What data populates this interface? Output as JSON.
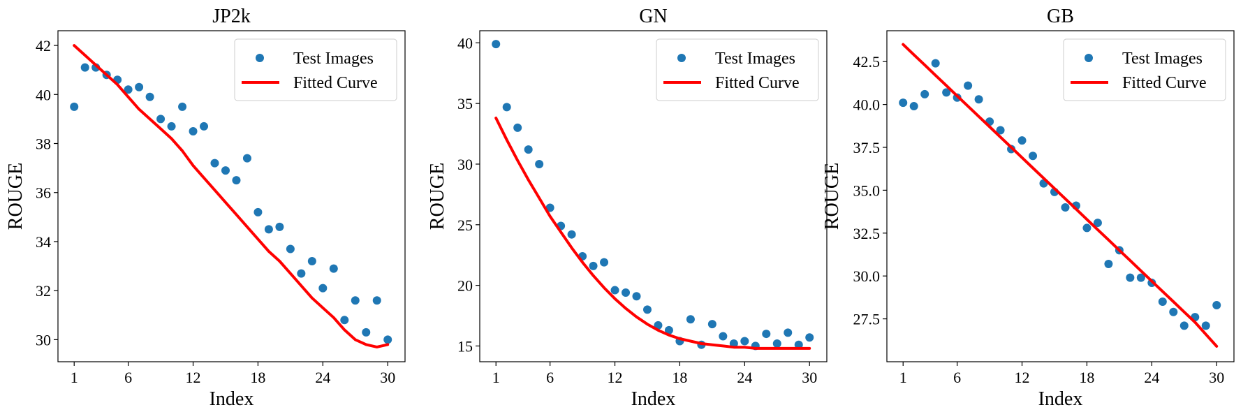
{
  "chart_data": [
    {
      "type": "scatter",
      "title": "JP2k",
      "xlabel": "Index",
      "ylabel": "ROUGE",
      "xlim": [
        -0.5,
        31.6
      ],
      "ylim": [
        29.1,
        42.6
      ],
      "xticks": [
        1,
        6,
        12,
        18,
        24,
        30
      ],
      "yticks": [
        30,
        32,
        34,
        36,
        38,
        40,
        42
      ],
      "ytick_labels": [
        "30",
        "32",
        "34",
        "36",
        "38",
        "40",
        "42"
      ],
      "legend_position": "top-right",
      "colors": {
        "points": "#1f77b4",
        "curve": "#ff0000"
      },
      "series": [
        {
          "name": "Test Images",
          "kind": "scatter",
          "x": [
            1,
            2,
            3,
            4,
            5,
            6,
            7,
            8,
            9,
            10,
            11,
            12,
            13,
            14,
            15,
            16,
            17,
            18,
            19,
            20,
            21,
            22,
            23,
            24,
            25,
            26,
            27,
            28,
            29,
            30
          ],
          "y": [
            39.5,
            41.1,
            41.1,
            40.8,
            40.6,
            40.2,
            40.3,
            39.9,
            39.0,
            38.7,
            39.5,
            38.5,
            38.7,
            37.2,
            36.9,
            36.5,
            37.4,
            35.2,
            34.5,
            34.6,
            33.7,
            32.7,
            33.2,
            32.1,
            32.9,
            30.8,
            31.6,
            30.3,
            31.6,
            30.0
          ]
        },
        {
          "name": "Fitted Curve",
          "kind": "line",
          "x": [
            1,
            2,
            3,
            4,
            5,
            6,
            7,
            8,
            9,
            10,
            11,
            12,
            13,
            14,
            15,
            16,
            17,
            18,
            19,
            20,
            21,
            22,
            23,
            24,
            25,
            26,
            27,
            28,
            29,
            30
          ],
          "y": [
            42.0,
            41.6,
            41.2,
            40.8,
            40.4,
            39.9,
            39.4,
            39.0,
            38.6,
            38.2,
            37.7,
            37.1,
            36.6,
            36.1,
            35.6,
            35.1,
            34.6,
            34.1,
            33.6,
            33.2,
            32.7,
            32.2,
            31.7,
            31.3,
            30.9,
            30.4,
            30.0,
            29.8,
            29.7,
            29.8
          ]
        }
      ]
    },
    {
      "type": "scatter",
      "title": "GN",
      "xlabel": "Index",
      "ylabel": "ROUGE",
      "xlim": [
        -0.5,
        31.6
      ],
      "ylim": [
        13.7,
        41.0
      ],
      "xticks": [
        1,
        6,
        12,
        18,
        24,
        30
      ],
      "yticks": [
        15,
        20,
        25,
        30,
        35,
        40
      ],
      "ytick_labels": [
        "15",
        "20",
        "25",
        "30",
        "35",
        "40"
      ],
      "legend_position": "top-right",
      "colors": {
        "points": "#1f77b4",
        "curve": "#ff0000"
      },
      "series": [
        {
          "name": "Test Images",
          "kind": "scatter",
          "x": [
            1,
            2,
            3,
            4,
            5,
            6,
            7,
            8,
            9,
            10,
            11,
            12,
            13,
            14,
            15,
            16,
            17,
            18,
            19,
            20,
            21,
            22,
            23,
            24,
            25,
            26,
            27,
            28,
            29,
            30
          ],
          "y": [
            39.9,
            34.7,
            33.0,
            31.2,
            30.0,
            26.4,
            24.9,
            24.2,
            22.4,
            21.6,
            21.9,
            19.6,
            19.4,
            19.1,
            18.0,
            16.7,
            16.3,
            15.4,
            17.2,
            15.1,
            16.8,
            15.8,
            15.2,
            15.4,
            15.0,
            16.0,
            15.2,
            16.1,
            15.1,
            15.7
          ]
        },
        {
          "name": "Fitted Curve",
          "kind": "line",
          "x": [
            1,
            2,
            3,
            4,
            5,
            6,
            7,
            8,
            9,
            10,
            11,
            12,
            13,
            14,
            15,
            16,
            17,
            18,
            19,
            20,
            21,
            22,
            23,
            24,
            25,
            26,
            27,
            28,
            29,
            30
          ],
          "y": [
            33.8,
            32.0,
            30.3,
            28.7,
            27.2,
            25.7,
            24.4,
            23.1,
            21.9,
            20.8,
            19.8,
            18.9,
            18.1,
            17.4,
            16.8,
            16.3,
            15.9,
            15.6,
            15.4,
            15.2,
            15.1,
            15.0,
            14.9,
            14.9,
            14.8,
            14.8,
            14.8,
            14.8,
            14.8,
            14.8
          ]
        }
      ]
    },
    {
      "type": "scatter",
      "title": "GB",
      "xlabel": "Index",
      "ylabel": "ROUGE",
      "xlim": [
        -0.5,
        31.6
      ],
      "ylim": [
        25.0,
        44.3
      ],
      "xticks": [
        1,
        6,
        12,
        18,
        24,
        30
      ],
      "yticks": [
        27.5,
        30.0,
        32.5,
        35.0,
        37.5,
        40.0,
        42.5
      ],
      "ytick_labels": [
        "27.5",
        "30.0",
        "32.5",
        "35.0",
        "37.5",
        "40.0",
        "42.5"
      ],
      "legend_position": "top-right",
      "colors": {
        "points": "#1f77b4",
        "curve": "#ff0000"
      },
      "series": [
        {
          "name": "Test Images",
          "kind": "scatter",
          "x": [
            1,
            2,
            3,
            4,
            5,
            6,
            7,
            8,
            9,
            10,
            11,
            12,
            13,
            14,
            15,
            16,
            17,
            18,
            19,
            20,
            21,
            22,
            23,
            24,
            25,
            26,
            27,
            28,
            29,
            30
          ],
          "y": [
            40.1,
            39.9,
            40.6,
            42.4,
            40.7,
            40.4,
            41.1,
            40.3,
            39.0,
            38.5,
            37.4,
            37.9,
            37.0,
            35.4,
            34.9,
            34.0,
            34.1,
            32.8,
            33.1,
            30.7,
            31.5,
            29.9,
            29.9,
            29.6,
            28.5,
            27.9,
            27.1,
            27.6,
            27.1,
            28.3
          ]
        },
        {
          "name": "Fitted Curve",
          "kind": "line",
          "x": [
            1,
            2,
            3,
            4,
            5,
            6,
            7,
            8,
            9,
            10,
            11,
            12,
            13,
            14,
            15,
            16,
            17,
            18,
            19,
            20,
            21,
            22,
            23,
            24,
            25,
            26,
            27,
            28,
            29,
            30
          ],
          "y": [
            43.5,
            42.9,
            42.3,
            41.7,
            41.1,
            40.5,
            39.9,
            39.3,
            38.7,
            38.1,
            37.5,
            36.9,
            36.3,
            35.7,
            35.1,
            34.5,
            33.9,
            33.3,
            32.7,
            32.1,
            31.5,
            30.9,
            30.3,
            29.7,
            29.1,
            28.5,
            27.9,
            27.3,
            26.6,
            25.9
          ]
        }
      ]
    }
  ]
}
